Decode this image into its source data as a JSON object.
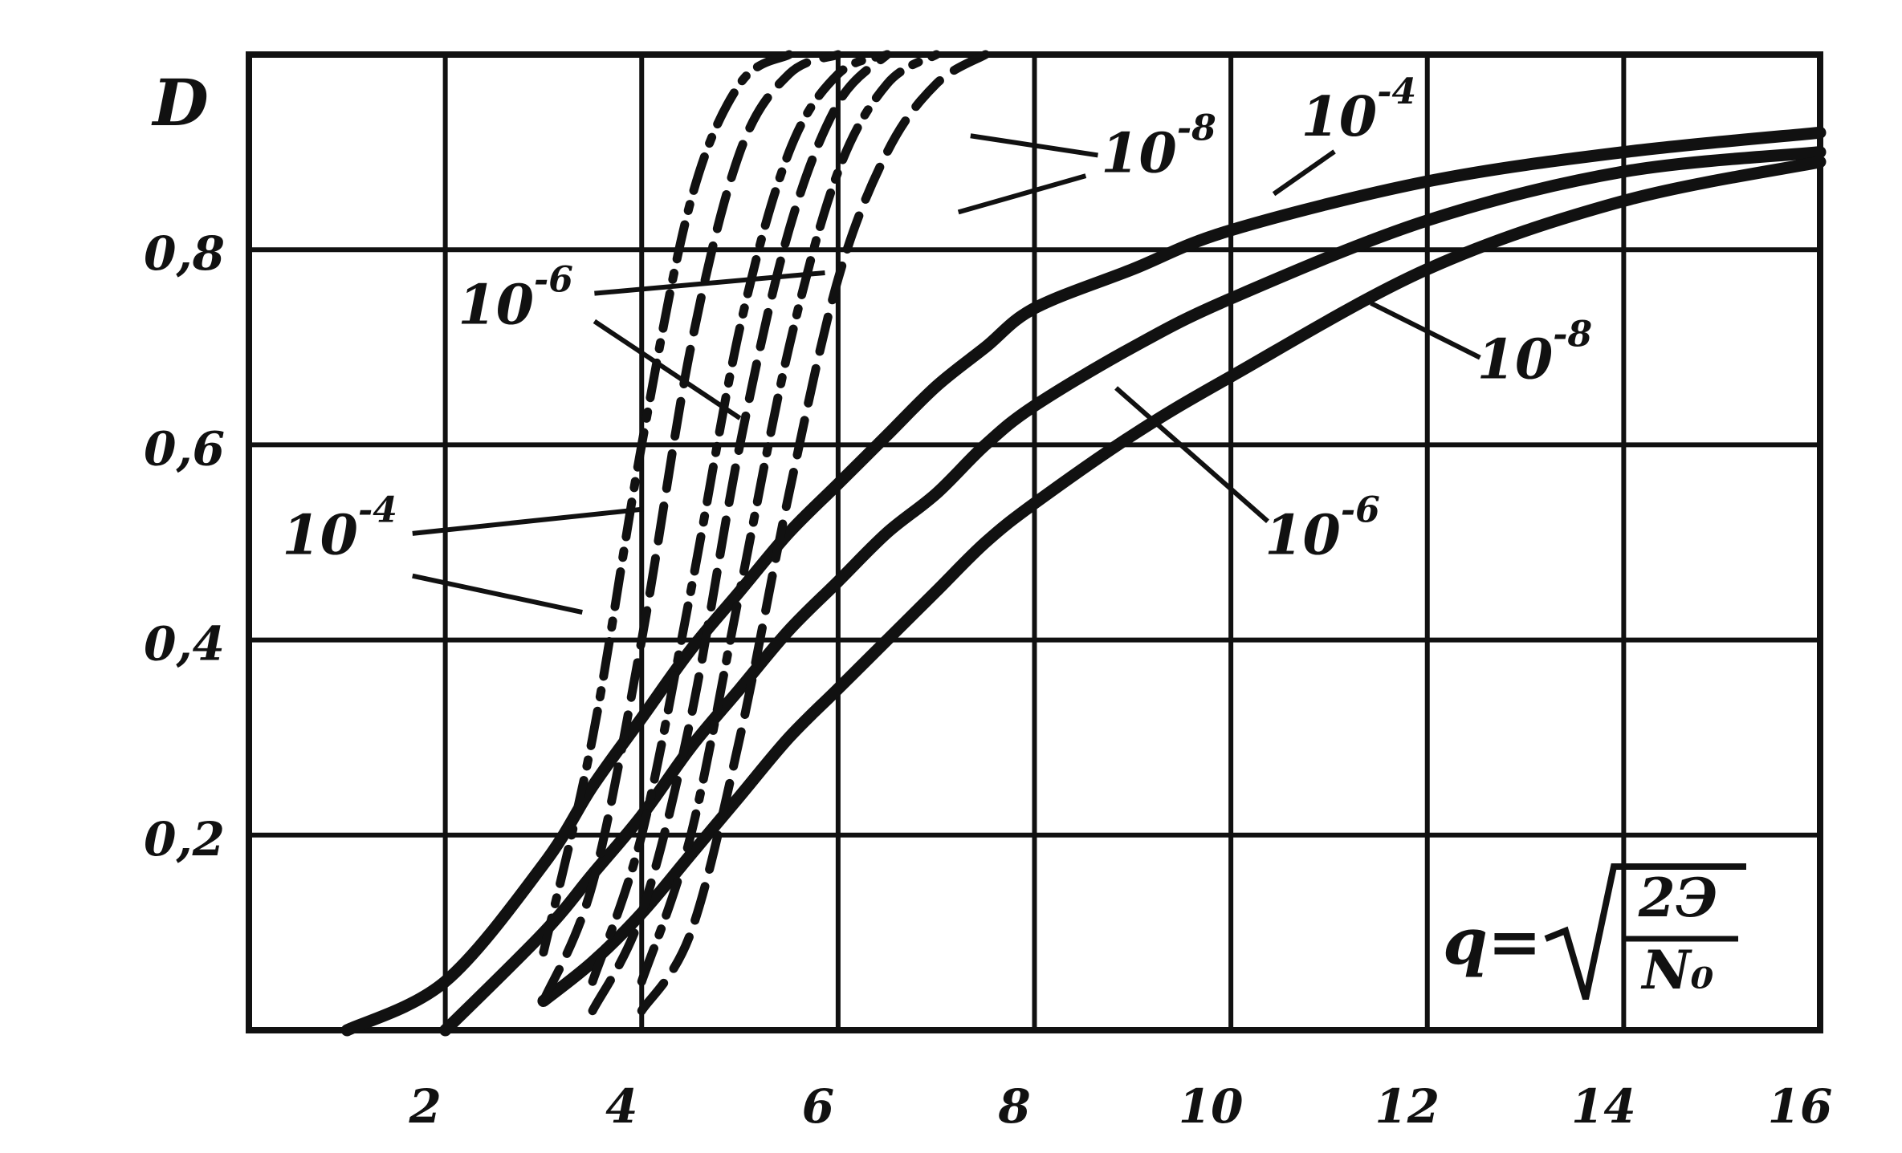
{
  "chart_data": {
    "type": "line",
    "y_label": "D",
    "x_label": {
      "variable": "q=",
      "numerator": "2Э",
      "denominator": "N₀"
    },
    "x": [
      1,
      2,
      3,
      3.5,
      4,
      4.5,
      5,
      5.5,
      6,
      6.5,
      7,
      7.5,
      8,
      9,
      10,
      12,
      14,
      16
    ],
    "series": [
      {
        "color": "#111111",
        "dash": "solid",
        "values": [
          0,
          0.05,
          0.17,
          0.25,
          0.32,
          0.39,
          0.45,
          0.51,
          0.56,
          0.61,
          0.66,
          0.7,
          0.74,
          0.78,
          0.82,
          0.87,
          0.9,
          0.92
        ]
      },
      {
        "color": "#111111",
        "dash": "solid",
        "values": [
          null,
          0,
          0.1,
          0.16,
          0.22,
          0.29,
          0.35,
          0.41,
          0.46,
          0.51,
          0.55,
          0.6,
          0.64,
          0.7,
          0.75,
          0.83,
          0.88,
          0.9
        ]
      },
      {
        "color": "#111111",
        "dash": "solid",
        "values": [
          null,
          null,
          0.03,
          0.07,
          0.12,
          0.18,
          0.24,
          0.3,
          0.35,
          0.4,
          0.45,
          0.5,
          0.54,
          0.61,
          0.67,
          0.78,
          0.85,
          0.89
        ]
      },
      {
        "color": "#111111",
        "dash": "dashdot",
        "values": [
          null,
          null,
          0.08,
          0.3,
          0.6,
          0.85,
          0.97,
          1.0,
          null,
          null,
          null,
          null,
          null,
          null,
          null,
          null,
          null,
          null
        ]
      },
      {
        "color": "#111111",
        "dash": "dashed",
        "values": [
          null,
          null,
          0.03,
          0.15,
          0.4,
          0.7,
          0.9,
          0.98,
          1.0,
          null,
          null,
          null,
          null,
          null,
          null,
          null,
          null,
          null
        ]
      },
      {
        "color": "#111111",
        "dash": "dashdot",
        "values": [
          null,
          null,
          null,
          0.05,
          0.2,
          0.45,
          0.72,
          0.9,
          0.98,
          1.0,
          null,
          null,
          null,
          null,
          null,
          null,
          null,
          null
        ]
      },
      {
        "color": "#111111",
        "dash": "dashed",
        "values": [
          null,
          null,
          null,
          0.02,
          0.12,
          0.32,
          0.6,
          0.82,
          0.95,
          1.0,
          null,
          null,
          null,
          null,
          null,
          null,
          null,
          null
        ]
      },
      {
        "color": "#111111",
        "dash": "dashdot",
        "values": [
          null,
          null,
          null,
          null,
          0.05,
          0.2,
          0.45,
          0.7,
          0.88,
          0.97,
          1.0,
          null,
          null,
          null,
          null,
          null,
          null,
          null
        ]
      },
      {
        "color": "#111111",
        "dash": "dashed",
        "values": [
          null,
          null,
          null,
          null,
          0.02,
          0.1,
          0.3,
          0.55,
          0.77,
          0.9,
          0.97,
          1.0,
          null,
          null,
          null,
          null,
          null,
          null
        ]
      }
    ],
    "annotations": [
      {
        "base": "10",
        "exponent": "-8"
      },
      {
        "base": "10",
        "exponent": "-4"
      },
      {
        "base": "10",
        "exponent": "-6"
      },
      {
        "base": "10",
        "exponent": "-4"
      },
      {
        "base": "10",
        "exponent": "-8"
      },
      {
        "base": "10",
        "exponent": "-6"
      }
    ],
    "xlim": [
      0,
      16
    ],
    "ylim": [
      0,
      1
    ],
    "xticks": [
      2,
      4,
      6,
      8,
      10,
      12,
      14,
      16
    ],
    "yticks": [
      {
        "value": 0.2,
        "label": "0,2"
      },
      {
        "value": 0.4,
        "label": "0,4"
      },
      {
        "value": 0.6,
        "label": "0,6"
      },
      {
        "value": 0.8,
        "label": "0,8"
      }
    ],
    "grid": true
  }
}
